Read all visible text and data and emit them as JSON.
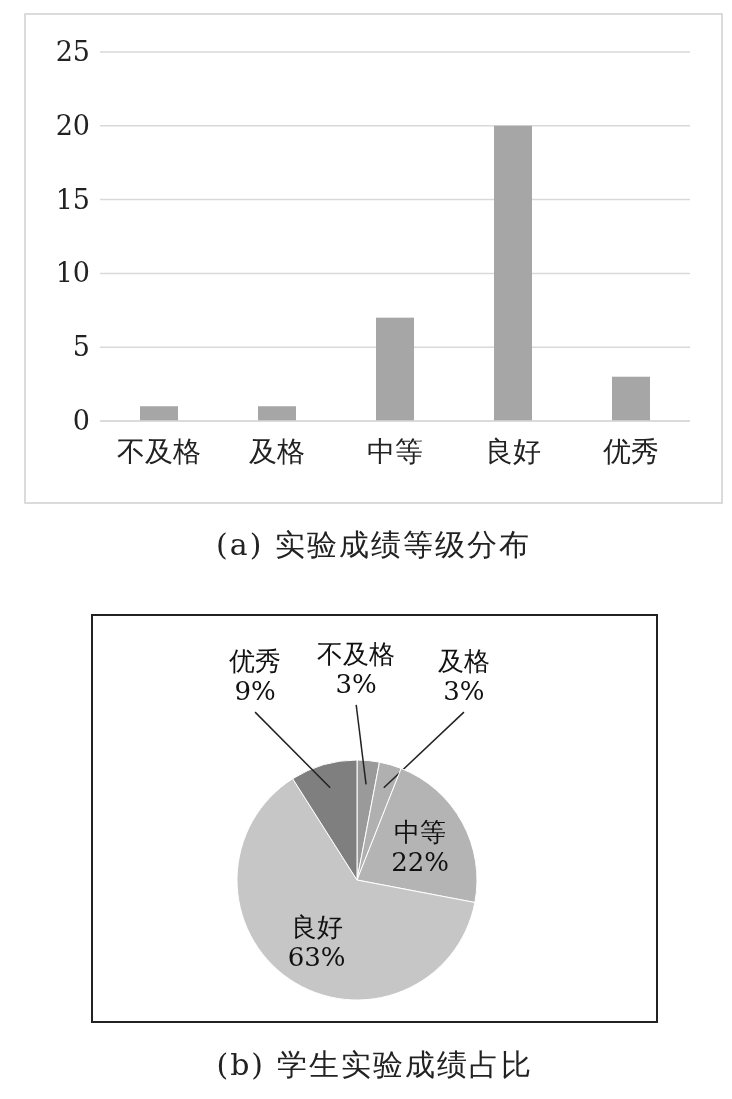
{
  "chart_data": [
    {
      "type": "bar",
      "title": "(a) 实验成绩等级分布",
      "categories": [
        "不及格",
        "及格",
        "中等",
        "良好",
        "优秀"
      ],
      "values": [
        1,
        1,
        7,
        20,
        3
      ],
      "color": "#a6a6a6",
      "ylim": [
        0,
        25
      ],
      "yticks": [
        0,
        5,
        10,
        15,
        20,
        25
      ],
      "grid": "y"
    },
    {
      "type": "pie",
      "title": "(b) 学生实验成绩占比",
      "categories": [
        "不及格",
        "及格",
        "中等",
        "良好",
        "优秀"
      ],
      "values": [
        3,
        3,
        22,
        63,
        9
      ],
      "colors": [
        "#9a9a9a",
        "#b0b0b0",
        "#b4b4b4",
        "#c6c6c6",
        "#7f7f7f"
      ],
      "value_labels": [
        "3%",
        "3%",
        "22%",
        "63%",
        "9%"
      ]
    }
  ]
}
